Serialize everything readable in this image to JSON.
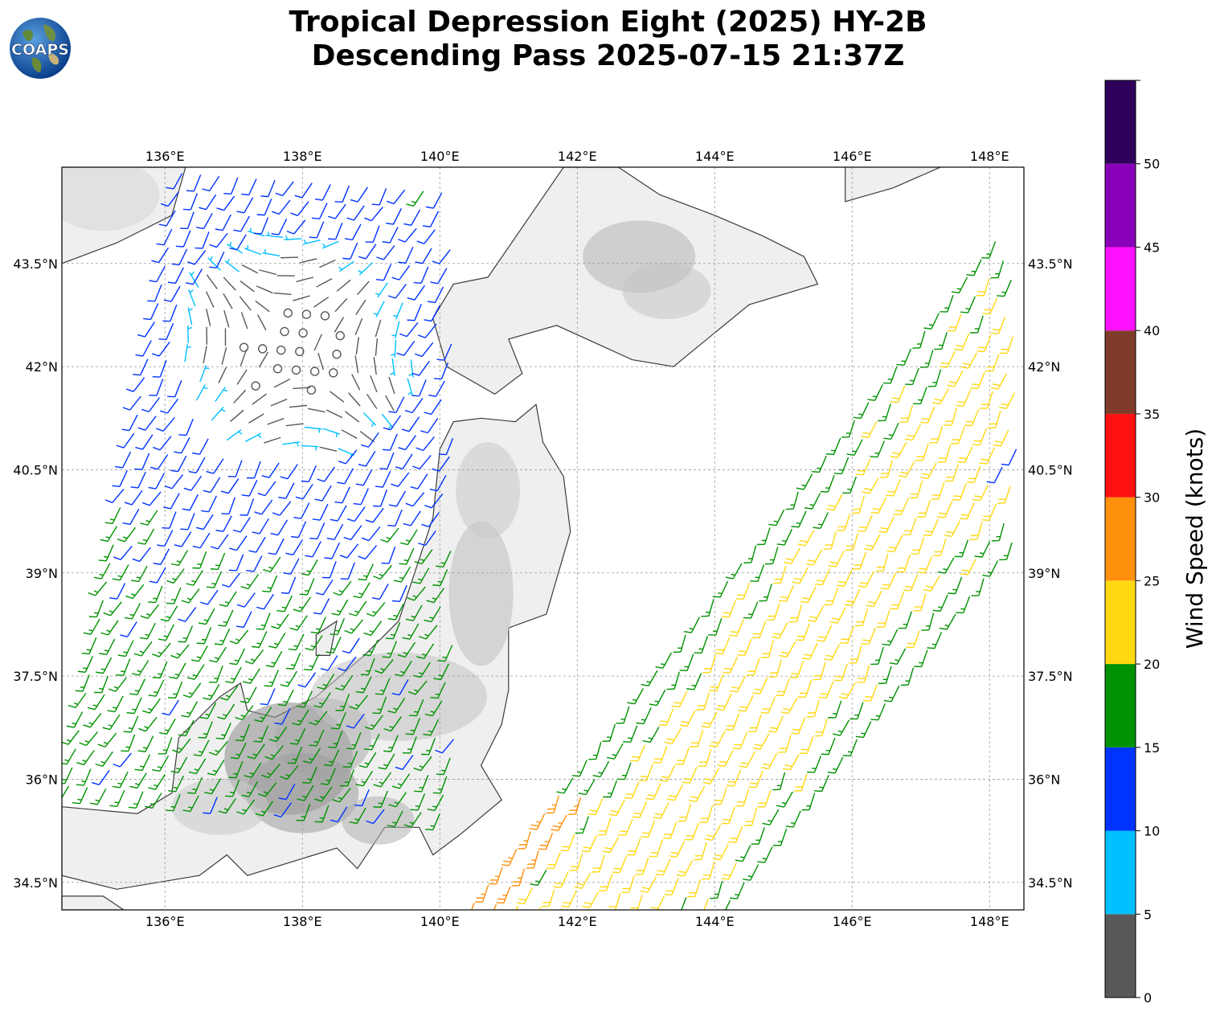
{
  "title": {
    "line1": "Tropical Depression Eight (2025) HY-2B",
    "line2": "Descending Pass 2025-07-15 21:37Z"
  },
  "logo": {
    "text": "COAPS",
    "icon": "globe-logo-icon"
  },
  "map": {
    "lon_range": [
      134.5,
      148.5
    ],
    "lat_range": [
      34.1,
      44.9
    ],
    "lon_labels": [
      "136°E",
      "138°E",
      "140°E",
      "142°E",
      "144°E",
      "146°E",
      "148°E"
    ],
    "lon_values": [
      136,
      138,
      140,
      142,
      144,
      146,
      148
    ],
    "lat_labels": [
      "34.5°N",
      "36°N",
      "37.5°N",
      "39°N",
      "40.5°N",
      "42°N",
      "43.5°N"
    ],
    "lat_values": [
      34.5,
      36,
      37.5,
      39,
      40.5,
      42,
      43.5
    ],
    "gridlines": true,
    "background": "grayscale terrain relief with coastlines"
  },
  "colorbar": {
    "label": "Wind Speed (knots)",
    "ticks": [
      "0",
      "5",
      "10",
      "15",
      "20",
      "25",
      "30",
      "35",
      "40",
      "45",
      "50"
    ],
    "bins": [
      {
        "min": 0,
        "max": 5,
        "color": "#585858"
      },
      {
        "min": 5,
        "max": 10,
        "color": "#00bfff"
      },
      {
        "min": 10,
        "max": 15,
        "color": "#0033ff"
      },
      {
        "min": 15,
        "max": 20,
        "color": "#009200"
      },
      {
        "min": 20,
        "max": 25,
        "color": "#ffd812"
      },
      {
        "min": 25,
        "max": 30,
        "color": "#ff900c"
      },
      {
        "min": 30,
        "max": 35,
        "color": "#ff1010"
      },
      {
        "min": 35,
        "max": 40,
        "color": "#7f3c2a"
      },
      {
        "min": 40,
        "max": 45,
        "color": "#ff10ff"
      },
      {
        "min": 45,
        "max": 50,
        "color": "#8800b8"
      },
      {
        "min": 50,
        "max": 55,
        "color": "#2e005c"
      }
    ]
  }
}
